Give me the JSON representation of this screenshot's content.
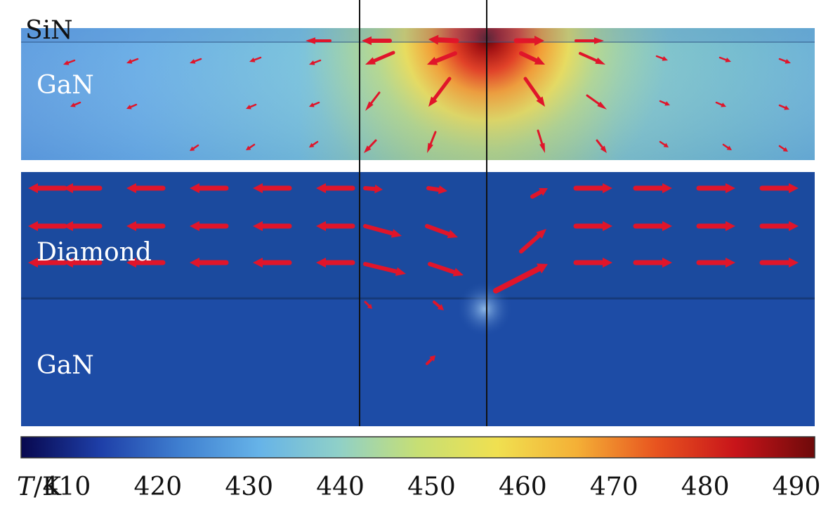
{
  "labels": {
    "sin": "SiN",
    "gan_top": "GaN",
    "diamond": "Diamond",
    "gan_bottom": "GaN"
  },
  "colorbar": {
    "unit_symbol": "T",
    "unit_rest": "/K",
    "ticks": [
      "410",
      "420",
      "430",
      "440",
      "450",
      "460",
      "470",
      "480",
      "490"
    ],
    "min": 405,
    "max": 492,
    "colormap": [
      "#08084f",
      "#1e3fa8",
      "#3f7fd0",
      "#66b3e8",
      "#8fd0c8",
      "#c7df74",
      "#f0e050",
      "#f4b036",
      "#e8541f",
      "#c8141a",
      "#6e0a0a"
    ]
  },
  "colors": {
    "diamond_fill": "#1b4a9e",
    "gan_bottom_fill": "#1d4ca6",
    "arrow": "#e0152a",
    "lines": "#111111"
  }
}
